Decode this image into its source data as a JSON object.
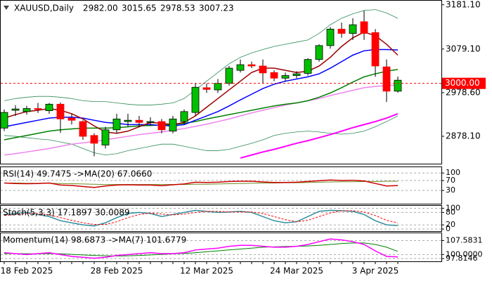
{
  "chart_data": [
    {
      "type": "candlestick",
      "title": "XAUUSD,Daily",
      "ohlc_labels": [
        "2982.00",
        "3015.65",
        "2978.53",
        "3007.23"
      ],
      "categories": [
        null,
        null,
        "18 Feb 2025",
        null,
        null,
        null,
        null,
        null,
        null,
        null,
        "28 Feb 2025",
        null,
        null,
        null,
        null,
        null,
        null,
        null,
        "12 Mar 2025",
        null,
        null,
        null,
        null,
        null,
        null,
        null,
        "24 Mar 2025",
        null,
        null,
        null,
        null,
        null,
        null,
        "3 Apr 2025",
        null,
        null
      ],
      "open": [
        2897,
        2938,
        2935,
        2942,
        2937,
        2952,
        2920,
        2912,
        2880,
        2858,
        2893,
        2912,
        2915,
        2910,
        2912,
        2890,
        2912,
        2933,
        2990,
        2985,
        3000,
        3030,
        3043,
        3040,
        3025,
        3012,
        3018,
        3023,
        3055,
        3087,
        3125,
        3115,
        3142,
        3117,
        3038,
        2982
      ],
      "high": [
        2940,
        2950,
        2948,
        2955,
        2955,
        2956,
        2930,
        2915,
        2885,
        2900,
        2930,
        2930,
        2925,
        2922,
        2918,
        2925,
        2940,
        3000,
        3000,
        3010,
        3040,
        3055,
        3050,
        3055,
        3030,
        3025,
        3028,
        3058,
        3090,
        3130,
        3140,
        3150,
        3168,
        3125,
        3055,
        3015.65
      ],
      "low": [
        2890,
        2925,
        2928,
        2932,
        2930,
        2886,
        2905,
        2870,
        2832,
        2850,
        2885,
        2900,
        2900,
        2902,
        2885,
        2885,
        2905,
        2925,
        2978,
        2978,
        2995,
        3025,
        3035,
        3000,
        3005,
        3005,
        3012,
        3018,
        3050,
        3080,
        3105,
        3100,
        3100,
        3015,
        2957,
        2978.53
      ],
      "close": [
        2933,
        2941,
        2942,
        2940,
        2952,
        2918,
        2915,
        2878,
        2862,
        2893,
        2918,
        2915,
        2910,
        2912,
        2893,
        2918,
        2935,
        2991,
        2986,
        3000,
        3035,
        3043,
        3040,
        3024,
        3012,
        3018,
        3022,
        3055,
        3087,
        3125,
        3115,
        3135,
        3115,
        3040,
        2982,
        3007.23
      ],
      "up_color": "#00c000",
      "down_color": "#ff0000",
      "ylim": [
        2815,
        3192
      ],
      "yticks": [
        {
          "value": 3181.1,
          "label": "3181.10"
        },
        {
          "value": 3079.1,
          "label": "3079.10"
        },
        {
          "value": 2978.6,
          "label": "2978.60"
        },
        {
          "value": 2878.1,
          "label": "2878.10"
        }
      ],
      "grid": false,
      "price_line": {
        "value": 3000,
        "label": "3000.00",
        "color": "#ff0000"
      },
      "series": [
        {
          "color": "#2e8b57",
          "width": 0.8,
          "values": [
            2960,
            2965,
            2968,
            2970,
            2970,
            2968,
            2965,
            2960,
            2958,
            2958,
            2955,
            2952,
            2950,
            2950,
            2952,
            2955,
            2965,
            2985,
            3005,
            3025,
            3045,
            3060,
            3070,
            3078,
            3085,
            3090,
            3095,
            3100,
            3115,
            3135,
            3150,
            3160,
            3168,
            3170,
            3162,
            3150
          ]
        },
        {
          "color": "#2e8b57",
          "width": 0.8,
          "values": [
            2880,
            2878,
            2875,
            2872,
            2870,
            2865,
            2860,
            2850,
            2840,
            2835,
            2838,
            2845,
            2850,
            2855,
            2860,
            2860,
            2855,
            2850,
            2845,
            2845,
            2848,
            2855,
            2862,
            2870,
            2880,
            2885,
            2888,
            2890,
            2888,
            2885,
            2883,
            2885,
            2890,
            2900,
            2912,
            2925
          ]
        },
        {
          "color": "#ff00ff",
          "width": 2,
          "values": [
            null,
            null,
            null,
            null,
            null,
            null,
            null,
            null,
            null,
            null,
            null,
            null,
            null,
            null,
            null,
            null,
            null,
            null,
            null,
            null,
            null,
            2828,
            2835,
            2842,
            2848,
            2855,
            2862,
            2868,
            2875,
            2882,
            2890,
            2898,
            2905,
            2912,
            2920,
            2930
          ]
        },
        {
          "color": "#ee82ee",
          "width": 1.5,
          "values": [
            2835,
            2838,
            2842,
            2846,
            2850,
            2855,
            2860,
            2863,
            2866,
            2870,
            2874,
            2878,
            2882,
            2885,
            2888,
            2892,
            2896,
            2901,
            2906,
            2912,
            2918,
            2925,
            2932,
            2938,
            2944,
            2950,
            2955,
            2960,
            2965,
            2972,
            2978,
            2984,
            2990,
            2993,
            2995,
            2996
          ]
        },
        {
          "color": "#008000",
          "width": 1.5,
          "values": [
            2870,
            2875,
            2880,
            2885,
            2890,
            2893,
            2895,
            2897,
            2897,
            2897,
            2898,
            2900,
            2902,
            2903,
            2904,
            2905,
            2908,
            2912,
            2918,
            2923,
            2928,
            2933,
            2938,
            2943,
            2948,
            2952,
            2955,
            2960,
            2968,
            2978,
            2990,
            3003,
            3015,
            3022,
            3028,
            3032
          ]
        },
        {
          "color": "#0000ff",
          "width": 1.5,
          "values": [
            2900,
            2905,
            2910,
            2915,
            2920,
            2922,
            2922,
            2920,
            2915,
            2910,
            2908,
            2905,
            2905,
            2905,
            2903,
            2902,
            2905,
            2915,
            2925,
            2935,
            2948,
            2962,
            2975,
            2988,
            2998,
            3005,
            3010,
            3015,
            3022,
            3035,
            3050,
            3065,
            3075,
            3078,
            3078,
            3077
          ]
        },
        {
          "color": "#990000",
          "width": 1.5,
          "values": [
            2920,
            2928,
            2935,
            2938,
            2942,
            2938,
            2930,
            2918,
            2902,
            2888,
            2885,
            2890,
            2900,
            2910,
            2908,
            2905,
            2910,
            2925,
            2945,
            2965,
            2985,
            3005,
            3025,
            3035,
            3035,
            3030,
            3025,
            3028,
            3040,
            3060,
            3085,
            3105,
            3118,
            3110,
            3090,
            3065
          ]
        }
      ]
    },
    {
      "type": "line",
      "title": "RSI(14) 49.7475 ->MA(20) 67.0660",
      "ylim": [
        -23,
        126
      ],
      "yticks": [
        100,
        70,
        30
      ],
      "grid": true,
      "series": [
        {
          "color": "#6b8e23",
          "width": 1,
          "values": [
            60,
            60,
            59,
            59,
            59,
            58,
            57,
            56,
            55,
            54,
            54,
            54,
            54,
            54,
            54,
            54,
            54,
            55,
            55,
            56,
            57,
            58,
            59,
            60,
            60,
            61,
            61,
            62,
            63,
            64,
            65,
            65,
            66,
            66,
            67,
            67.066
          ]
        },
        {
          "color": "#cc0000",
          "width": 1.5,
          "values": [
            60,
            58,
            57,
            58,
            60,
            52,
            50,
            46,
            42,
            48,
            52,
            53,
            52,
            52,
            49,
            53,
            56,
            63,
            62,
            63,
            66,
            67,
            67,
            64,
            62,
            62,
            63,
            66,
            69,
            72,
            70,
            71,
            68,
            58,
            48,
            49.7475
          ]
        }
      ]
    },
    {
      "type": "line",
      "title": "Stoch(5,3,3) 17.1897 30.0089",
      "ylim": [
        -10,
        115
      ],
      "yticks": [
        100,
        80,
        20,
        0
      ],
      "grid": true,
      "series": [
        {
          "color": "#2f8f9f",
          "width": 1.5,
          "values": [
            70,
            75,
            80,
            70,
            60,
            40,
            30,
            20,
            15,
            30,
            55,
            75,
            80,
            75,
            60,
            70,
            80,
            90,
            85,
            80,
            82,
            85,
            80,
            60,
            40,
            30,
            35,
            60,
            85,
            90,
            88,
            85,
            70,
            40,
            20,
            17.1897
          ]
        },
        {
          "color": "#ff0000",
          "width": 1,
          "dash": true,
          "values": [
            65,
            70,
            75,
            75,
            68,
            55,
            42,
            30,
            22,
            22,
            35,
            55,
            70,
            77,
            72,
            68,
            72,
            80,
            85,
            85,
            82,
            82,
            82,
            75,
            60,
            45,
            35,
            42,
            60,
            78,
            88,
            88,
            82,
            65,
            42,
            30.0089
          ]
        }
      ]
    },
    {
      "type": "line",
      "title": "Momentum(14) 98.6873 ->MA(7) 101.6779",
      "ylim": [
        96.3,
        112
      ],
      "yticks": [
        107.5831,
        {
          "value": 100,
          "label": "100.0000"
        },
        97.8146
      ],
      "grid": true,
      "series": [
        {
          "color": "#008000",
          "width": 1,
          "values": [
            100.5,
            100.5,
            100.4,
            100.4,
            100.5,
            100.4,
            100.1,
            99.8,
            99.5,
            99.3,
            99.2,
            99.3,
            99.5,
            99.8,
            100.1,
            100.4,
            100.6,
            101,
            101.5,
            102,
            102.5,
            103,
            103.5,
            104,
            104.2,
            104.4,
            104.5,
            104.7,
            105,
            105.5,
            106,
            106.3,
            106.3,
            105.5,
            104,
            101.6779
          ]
        },
        {
          "color": "#ff00ff",
          "width": 1.5,
          "values": [
            101,
            100.5,
            100,
            100.5,
            101,
            100,
            99,
            98.5,
            98,
            98.5,
            99.5,
            100,
            100.5,
            101,
            100.5,
            100.5,
            101,
            102.5,
            103,
            103.5,
            104.5,
            105,
            105,
            104.5,
            104,
            104,
            104.5,
            105.5,
            107,
            108.5,
            108,
            107,
            105.5,
            102,
            99,
            98.6873
          ]
        }
      ]
    }
  ]
}
